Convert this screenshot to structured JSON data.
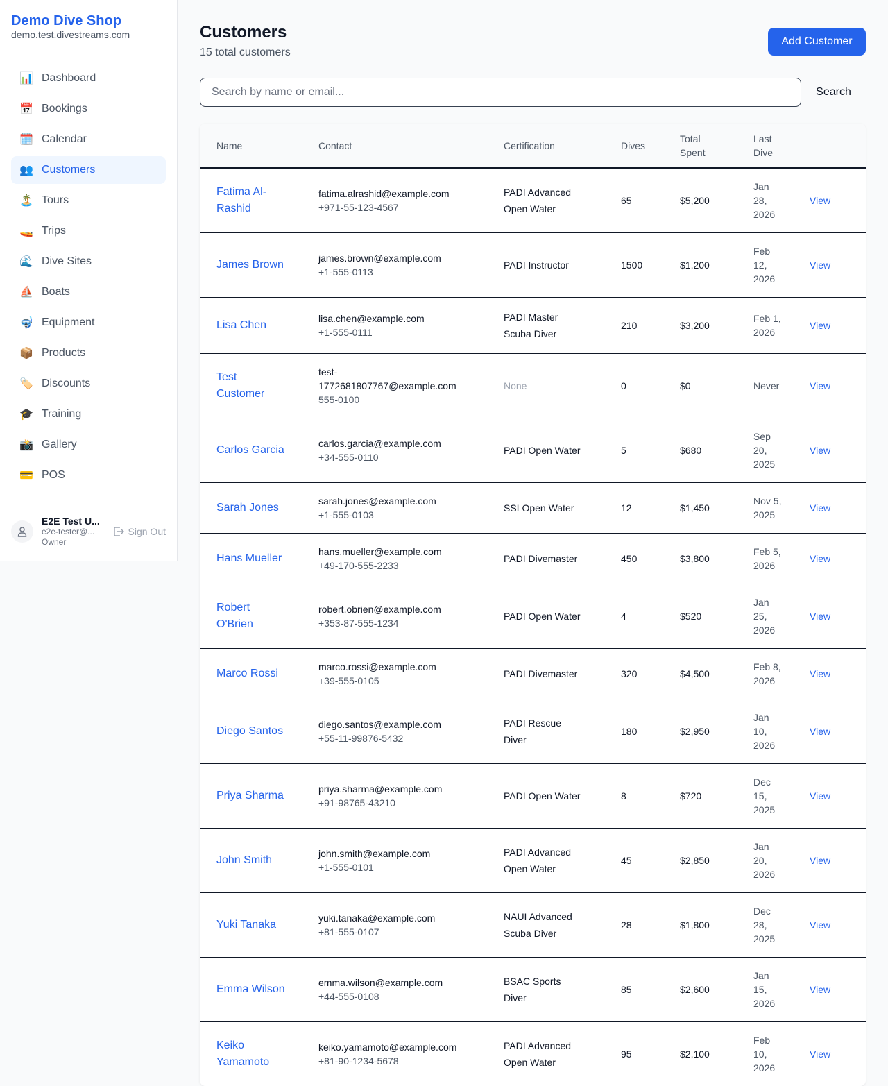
{
  "sidebar": {
    "shop_name": "Demo Dive Shop",
    "domain": "demo.test.divestreams.com",
    "items": [
      {
        "label": "Dashboard",
        "icon": "📊",
        "icon_name": "bar-chart-icon"
      },
      {
        "label": "Bookings",
        "icon": "📅",
        "icon_name": "calendar-date-icon"
      },
      {
        "label": "Calendar",
        "icon": "🗓️",
        "icon_name": "calendar-icon"
      },
      {
        "label": "Customers",
        "icon": "👥",
        "icon_name": "users-icon",
        "active": true
      },
      {
        "label": "Tours",
        "icon": "🏝️",
        "icon_name": "island-icon"
      },
      {
        "label": "Trips",
        "icon": "🚤",
        "icon_name": "boat-icon"
      },
      {
        "label": "Dive Sites",
        "icon": "🌊",
        "icon_name": "wave-icon"
      },
      {
        "label": "Boats",
        "icon": "⛵",
        "icon_name": "sailboat-icon"
      },
      {
        "label": "Equipment",
        "icon": "🤿",
        "icon_name": "diving-mask-icon"
      },
      {
        "label": "Products",
        "icon": "📦",
        "icon_name": "package-icon"
      },
      {
        "label": "Discounts",
        "icon": "🏷️",
        "icon_name": "tag-icon"
      },
      {
        "label": "Training",
        "icon": "🎓",
        "icon_name": "graduation-cap-icon"
      },
      {
        "label": "Gallery",
        "icon": "📸",
        "icon_name": "camera-icon"
      },
      {
        "label": "POS",
        "icon": "💳",
        "icon_name": "credit-card-icon"
      }
    ],
    "user": {
      "name": "E2E Test U...",
      "email": "e2e-tester@...",
      "role": "Owner",
      "sign_out": "Sign Out"
    }
  },
  "header": {
    "title": "Customers",
    "subtitle": "15 total customers",
    "add_button": "Add Customer"
  },
  "search": {
    "placeholder": "Search by name or email...",
    "button": "Search"
  },
  "table": {
    "columns": [
      "Name",
      "Contact",
      "Certification",
      "Dives",
      "Total Spent",
      "Last Dive",
      ""
    ],
    "action_label": "View",
    "rows": [
      {
        "name": "Fatima Al-Rashid",
        "email": "fatima.alrashid@example.com",
        "phone": "+971-55-123-4567",
        "cert": "PADI Advanced Open Water",
        "dives": "65",
        "spent": "$5,200",
        "last": "Jan 28, 2026"
      },
      {
        "name": "James Brown",
        "email": "james.brown@example.com",
        "phone": "+1-555-0113",
        "cert": "PADI Instructor",
        "dives": "1500",
        "spent": "$1,200",
        "last": "Feb 12, 2026"
      },
      {
        "name": "Lisa Chen",
        "email": "lisa.chen@example.com",
        "phone": "+1-555-0111",
        "cert": "PADI Master Scuba Diver",
        "dives": "210",
        "spent": "$3,200",
        "last": "Feb 1, 2026"
      },
      {
        "name": "Test Customer",
        "email": "test-1772681807767@example.com",
        "phone": "555-0100",
        "cert": "None",
        "dives": "0",
        "spent": "$0",
        "last": "Never"
      },
      {
        "name": "Carlos Garcia",
        "email": "carlos.garcia@example.com",
        "phone": "+34-555-0110",
        "cert": "PADI Open Water",
        "dives": "5",
        "spent": "$680",
        "last": "Sep 20, 2025"
      },
      {
        "name": "Sarah Jones",
        "email": "sarah.jones@example.com",
        "phone": "+1-555-0103",
        "cert": "SSI Open Water",
        "dives": "12",
        "spent": "$1,450",
        "last": "Nov 5, 2025"
      },
      {
        "name": "Hans Mueller",
        "email": "hans.mueller@example.com",
        "phone": "+49-170-555-2233",
        "cert": "PADI Divemaster",
        "dives": "450",
        "spent": "$3,800",
        "last": "Feb 5, 2026"
      },
      {
        "name": "Robert O'Brien",
        "email": "robert.obrien@example.com",
        "phone": "+353-87-555-1234",
        "cert": "PADI Open Water",
        "dives": "4",
        "spent": "$520",
        "last": "Jan 25, 2026"
      },
      {
        "name": "Marco Rossi",
        "email": "marco.rossi@example.com",
        "phone": "+39-555-0105",
        "cert": "PADI Divemaster",
        "dives": "320",
        "spent": "$4,500",
        "last": "Feb 8, 2026"
      },
      {
        "name": "Diego Santos",
        "email": "diego.santos@example.com",
        "phone": "+55-11-99876-5432",
        "cert": "PADI Rescue Diver",
        "dives": "180",
        "spent": "$2,950",
        "last": "Jan 10, 2026"
      },
      {
        "name": "Priya Sharma",
        "email": "priya.sharma@example.com",
        "phone": "+91-98765-43210",
        "cert": "PADI Open Water",
        "dives": "8",
        "spent": "$720",
        "last": "Dec 15, 2025"
      },
      {
        "name": "John Smith",
        "email": "john.smith@example.com",
        "phone": "+1-555-0101",
        "cert": "PADI Advanced Open Water",
        "dives": "45",
        "spent": "$2,850",
        "last": "Jan 20, 2026"
      },
      {
        "name": "Yuki Tanaka",
        "email": "yuki.tanaka@example.com",
        "phone": "+81-555-0107",
        "cert": "NAUI Advanced Scuba Diver",
        "dives": "28",
        "spent": "$1,800",
        "last": "Dec 28, 2025"
      },
      {
        "name": "Emma Wilson",
        "email": "emma.wilson@example.com",
        "phone": "+44-555-0108",
        "cert": "BSAC Sports Diver",
        "dives": "85",
        "spent": "$2,600",
        "last": "Jan 15, 2026"
      },
      {
        "name": "Keiko Yamamoto",
        "email": "keiko.yamamoto@example.com",
        "phone": "+81-90-1234-5678",
        "cert": "PADI Advanced Open Water",
        "dives": "95",
        "spent": "$2,100",
        "last": "Feb 10, 2026"
      }
    ]
  },
  "colors": {
    "accent": "#2563eb",
    "active_bg": "#eff6ff"
  }
}
